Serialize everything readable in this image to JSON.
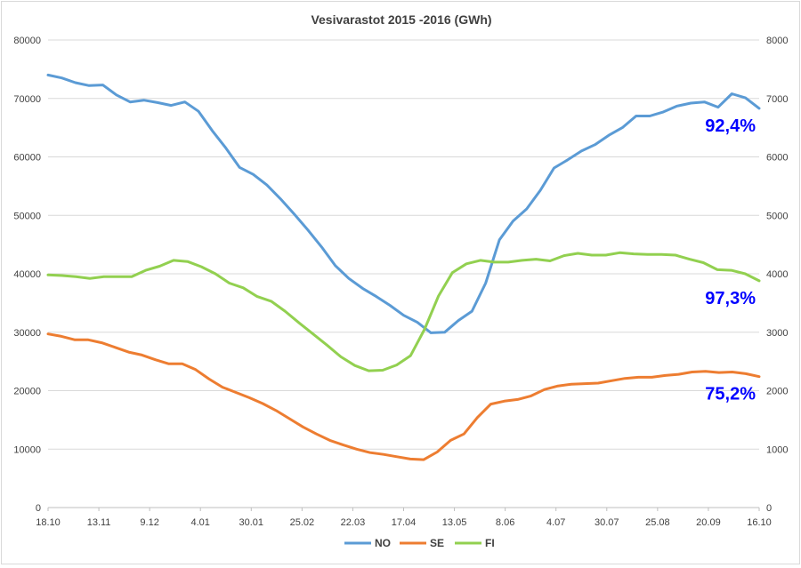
{
  "chart_data": {
    "type": "line",
    "title": "Vesivarastot 2015 -2016 (GWh)",
    "y_left": {
      "min": 0,
      "max": 80000,
      "ticks": [
        0,
        10000,
        20000,
        30000,
        40000,
        50000,
        60000,
        70000,
        80000
      ]
    },
    "y_right": {
      "min": 0,
      "max": 8000,
      "ticks": [
        0,
        1000,
        2000,
        3000,
        4000,
        5000,
        6000,
        7000,
        8000
      ]
    },
    "x_ticks": [
      "18.10",
      "13.11",
      "9.12",
      "4.01",
      "30.01",
      "25.02",
      "22.03",
      "17.04",
      "13.05",
      "8.06",
      "4.07",
      "30.07",
      "25.08",
      "20.09",
      "16.10"
    ],
    "x_tick_weeks": [
      0,
      4,
      8,
      12,
      16,
      20,
      24,
      28,
      32,
      36,
      40,
      44,
      48,
      52,
      56
    ],
    "n_weeks": 56,
    "legend_position": "bottom",
    "series": [
      {
        "name": "NO",
        "color": "#5b9bd5",
        "axis": "left",
        "values": [
          74000,
          73500,
          72700,
          72200,
          72300,
          70600,
          69400,
          69700,
          69300,
          68800,
          69400,
          67800,
          64500,
          61500,
          58200,
          57000,
          55200,
          52800,
          50200,
          47500,
          44600,
          41400,
          39200,
          37500,
          36100,
          34600,
          32900,
          31700,
          29900,
          30000,
          32000,
          33600,
          38400,
          45800,
          49000,
          51100,
          54300,
          58100,
          59500,
          61000,
          62100,
          63700,
          65000,
          67000,
          67000,
          67700,
          68700,
          69200,
          69400,
          68500,
          70800,
          70100,
          68300
        ]
      },
      {
        "name": "SE",
        "color": "#ed7d31",
        "axis": "left",
        "values": [
          29700,
          29300,
          28700,
          28700,
          28200,
          27400,
          26600,
          26100,
          25300,
          24600,
          24600,
          23600,
          22000,
          20600,
          19700,
          18800,
          17800,
          16600,
          15200,
          13800,
          12600,
          11500,
          10700,
          10000,
          9400,
          9100,
          8700,
          8300,
          8200,
          9500,
          11500,
          12600,
          15400,
          17700,
          18200,
          18500,
          19100,
          20200,
          20800,
          21100,
          21200,
          21300,
          21700,
          22100,
          22300,
          22300,
          22600,
          22800,
          23200,
          23300,
          23100,
          23200,
          22900,
          22400
        ]
      },
      {
        "name": "FI",
        "color": "#92d050",
        "axis": "right",
        "values": [
          3980,
          3970,
          3950,
          3920,
          3950,
          3950,
          3950,
          4060,
          4130,
          4230,
          4210,
          4120,
          4000,
          3840,
          3760,
          3610,
          3530,
          3360,
          3160,
          2970,
          2780,
          2580,
          2430,
          2340,
          2350,
          2440,
          2600,
          3050,
          3620,
          4020,
          4170,
          4230,
          4200,
          4200,
          4230,
          4250,
          4220,
          4310,
          4350,
          4320,
          4320,
          4360,
          4340,
          4330,
          4330,
          4320,
          4250,
          4190,
          4070,
          4060,
          4000,
          3880
        ]
      }
    ],
    "annotations": [
      {
        "text": "92,4%",
        "series": "NO"
      },
      {
        "text": "97,3%",
        "series": "FI"
      },
      {
        "text": "75,2%",
        "series": "SE"
      }
    ]
  }
}
